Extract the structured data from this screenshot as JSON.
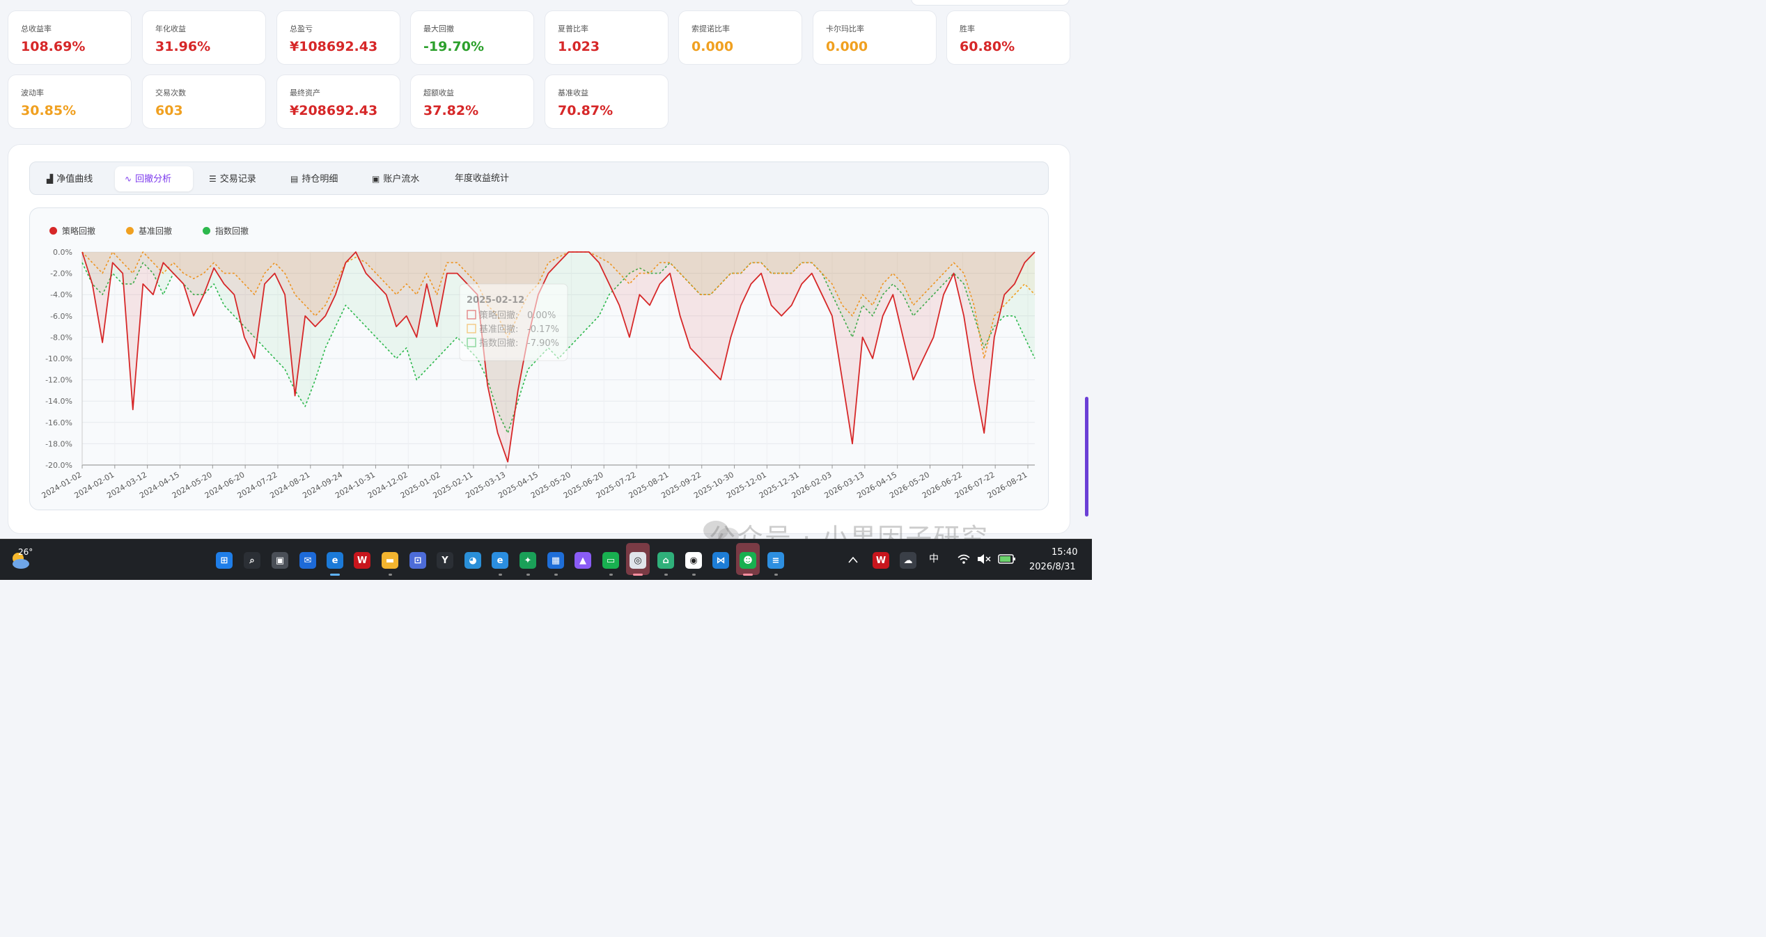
{
  "metrics": [
    {
      "label": "总收益率",
      "value": "108.69%",
      "color": "#d62728"
    },
    {
      "label": "年化收益",
      "value": "31.96%",
      "color": "#d62728"
    },
    {
      "label": "总盈亏",
      "value": "¥108692.43",
      "color": "#d62728"
    },
    {
      "label": "最大回撤",
      "value": "-19.70%",
      "color": "#2ca02c"
    },
    {
      "label": "夏普比率",
      "value": "1.023",
      "color": "#d62728"
    },
    {
      "label": "索提诺比率",
      "value": "0.000",
      "color": "#f0a020"
    },
    {
      "label": "卡尔玛比率",
      "value": "0.000",
      "color": "#f0a020"
    },
    {
      "label": "胜率",
      "value": "60.80%",
      "color": "#d62728"
    },
    {
      "label": "波动率",
      "value": "30.85%",
      "color": "#f0a020"
    },
    {
      "label": "交易次数",
      "value": "603",
      "color": "#f0a020"
    },
    {
      "label": "最终资产",
      "value": "¥208692.43",
      "color": "#d62728"
    },
    {
      "label": "超额收益",
      "value": "37.82%",
      "color": "#d62728"
    },
    {
      "label": "基准收益",
      "value": "70.87%",
      "color": "#d62728"
    }
  ],
  "tabs": [
    {
      "label": "净值曲线",
      "icon": "area-chart-icon",
      "glyph": "▟"
    },
    {
      "label": "回撤分析",
      "icon": "line-chart-icon",
      "glyph": "📈",
      "active": true
    },
    {
      "label": "交易记录",
      "icon": "list-icon",
      "glyph": "☰"
    },
    {
      "label": "持仓明细",
      "icon": "briefcase-icon",
      "glyph": "💼"
    },
    {
      "label": "账户流水",
      "icon": "contact-book-icon",
      "glyph": "▣"
    },
    {
      "label": "年度收益统计",
      "icon": "",
      "glyph": ""
    }
  ],
  "chart_data": {
    "type": "area",
    "legend_position": "top-left",
    "grid": true,
    "ylim": [
      -20,
      0
    ],
    "y_ticks": [
      "0.0%",
      "-2.0%",
      "-4.0%",
      "-6.0%",
      "-8.0%",
      "-10.0%",
      "-12.0%",
      "-14.0%",
      "-16.0%",
      "-18.0%",
      "-20.0%"
    ],
    "x_ticks": [
      "2024-01-02",
      "2024-02-01",
      "2024-03-12",
      "2024-04-15",
      "2024-05-20",
      "2024-06-20",
      "2024-07-22",
      "2024-08-21",
      "2024-09-24",
      "2024-10-31",
      "2024-12-02",
      "2025-01-02",
      "2025-02-11",
      "2025-03-13",
      "2025-04-15",
      "2025-05-20",
      "2025-06-20",
      "2025-07-22",
      "2025-08-21",
      "2025-09-22",
      "2025-10-30",
      "2025-12-01",
      "2025-12-31",
      "2026-02-03",
      "2026-03-13",
      "2026-04-15",
      "2026-05-20",
      "2026-06-22",
      "2026-07-22",
      "2026-08-21"
    ],
    "series": [
      {
        "name": "策略回撤",
        "color": "#d62728",
        "dashed": false,
        "values": [
          0,
          -3,
          -8.5,
          -1,
          -2,
          -14.8,
          -3,
          -4,
          -1,
          -2,
          -3,
          -6,
          -4,
          -1.5,
          -3,
          -4,
          -8,
          -10,
          -3,
          -2,
          -4,
          -13.5,
          -6,
          -7,
          -6,
          -4,
          -1,
          0,
          -2,
          -3,
          -4,
          -7,
          -6,
          -8,
          -3,
          -7,
          -2,
          -2,
          -3,
          -4,
          -12.5,
          -17,
          -19.7,
          -13,
          -8,
          -4,
          -2,
          -1,
          0,
          0,
          0,
          -1,
          -3,
          -5,
          -8,
          -4,
          -5,
          -3,
          -2,
          -6,
          -9,
          -10,
          -11,
          -12,
          -8,
          -5,
          -3,
          -2,
          -5,
          -6,
          -5,
          -3,
          -2,
          -4,
          -6,
          -12,
          -18,
          -8,
          -10,
          -6,
          -4,
          -8,
          -12,
          -10,
          -8,
          -4,
          -2,
          -6,
          -12,
          -17,
          -8,
          -4,
          -3,
          -1,
          0
        ]
      },
      {
        "name": "基准回撤",
        "color": "#f0a020",
        "dashed": true,
        "values": [
          0,
          -1,
          -2,
          0,
          -1,
          -2,
          0,
          -1,
          -2,
          -1,
          -2,
          -2.5,
          -2,
          -1,
          -2,
          -2,
          -3,
          -4,
          -2,
          -1,
          -2,
          -4,
          -5,
          -6,
          -5,
          -3,
          -1,
          -0.5,
          -1,
          -2,
          -3,
          -4,
          -3,
          -4,
          -2,
          -4,
          -1,
          -1,
          -2,
          -3,
          -5,
          -6,
          -8,
          -6,
          -4,
          -3,
          -1,
          -0.5,
          0,
          0,
          0,
          -0.5,
          -1,
          -2,
          -3,
          -2,
          -2,
          -1,
          -1,
          -2,
          -3,
          -4,
          -4,
          -3,
          -2,
          -2,
          -1,
          -1,
          -2,
          -2,
          -2,
          -1,
          -1,
          -2,
          -3,
          -5,
          -6,
          -4,
          -5,
          -3,
          -2,
          -3,
          -5,
          -4,
          -3,
          -2,
          -1,
          -2,
          -5,
          -10,
          -6,
          -5,
          -4,
          -3,
          -4
        ]
      },
      {
        "name": "指数回撤",
        "color": "#2db84d",
        "dashed": true,
        "values": [
          -1,
          -3,
          -4,
          -2,
          -3,
          -3,
          -1,
          -2,
          -4,
          -2,
          -3,
          -4,
          -4,
          -3,
          -5,
          -6,
          -7,
          -8,
          -9,
          -10,
          -11,
          -13,
          -14.5,
          -12,
          -9,
          -7,
          -5,
          -6,
          -7,
          -8,
          -9,
          -10,
          -9,
          -12,
          -11,
          -10,
          -9,
          -8,
          -9,
          -10,
          -12,
          -15,
          -17,
          -14,
          -11,
          -10,
          -9,
          -10,
          -9,
          -8,
          -7,
          -6,
          -4,
          -3,
          -2,
          -1.5,
          -2,
          -2,
          -1,
          -2,
          -3,
          -4,
          -4,
          -3,
          -2,
          -2,
          -1,
          -1,
          -2,
          -2,
          -2,
          -1,
          -1,
          -2,
          -4,
          -6,
          -8,
          -5,
          -6,
          -4,
          -3,
          -4,
          -6,
          -5,
          -4,
          -3,
          -2,
          -3,
          -6,
          -9,
          -7,
          -6,
          -6,
          -8,
          -10
        ]
      }
    ],
    "tooltip": {
      "date": "2025-02-12",
      "rows": [
        {
          "label": "策略回撤:",
          "value": "0.00%",
          "color": "#d62728"
        },
        {
          "label": "基准回撤:",
          "value": "-0.17%",
          "color": "#f0a020"
        },
        {
          "label": "指数回撤:",
          "value": "-7.90%",
          "color": "#2db84d"
        }
      ]
    }
  },
  "watermark": "公众号 · 小果因子研究",
  "taskbar": {
    "temperature": "26°",
    "icons": [
      "windows-start-icon",
      "search-icon",
      "task-view-icon",
      "outlook-icon",
      "edge-icon",
      "wps-icon",
      "file-explorer-icon",
      "store-icon",
      "app-icon",
      "browser-icon",
      "edge-ai-icon",
      "wechat-work-icon",
      "app-badge-icon",
      "app-triangle-icon",
      "chat-icon",
      "search-app-icon",
      "map-icon",
      "panda-icon",
      "vscode-icon",
      "wechat-icon",
      "notepad-icon"
    ],
    "ime": "中",
    "time": "15:40",
    "date": "2026/8/31"
  }
}
